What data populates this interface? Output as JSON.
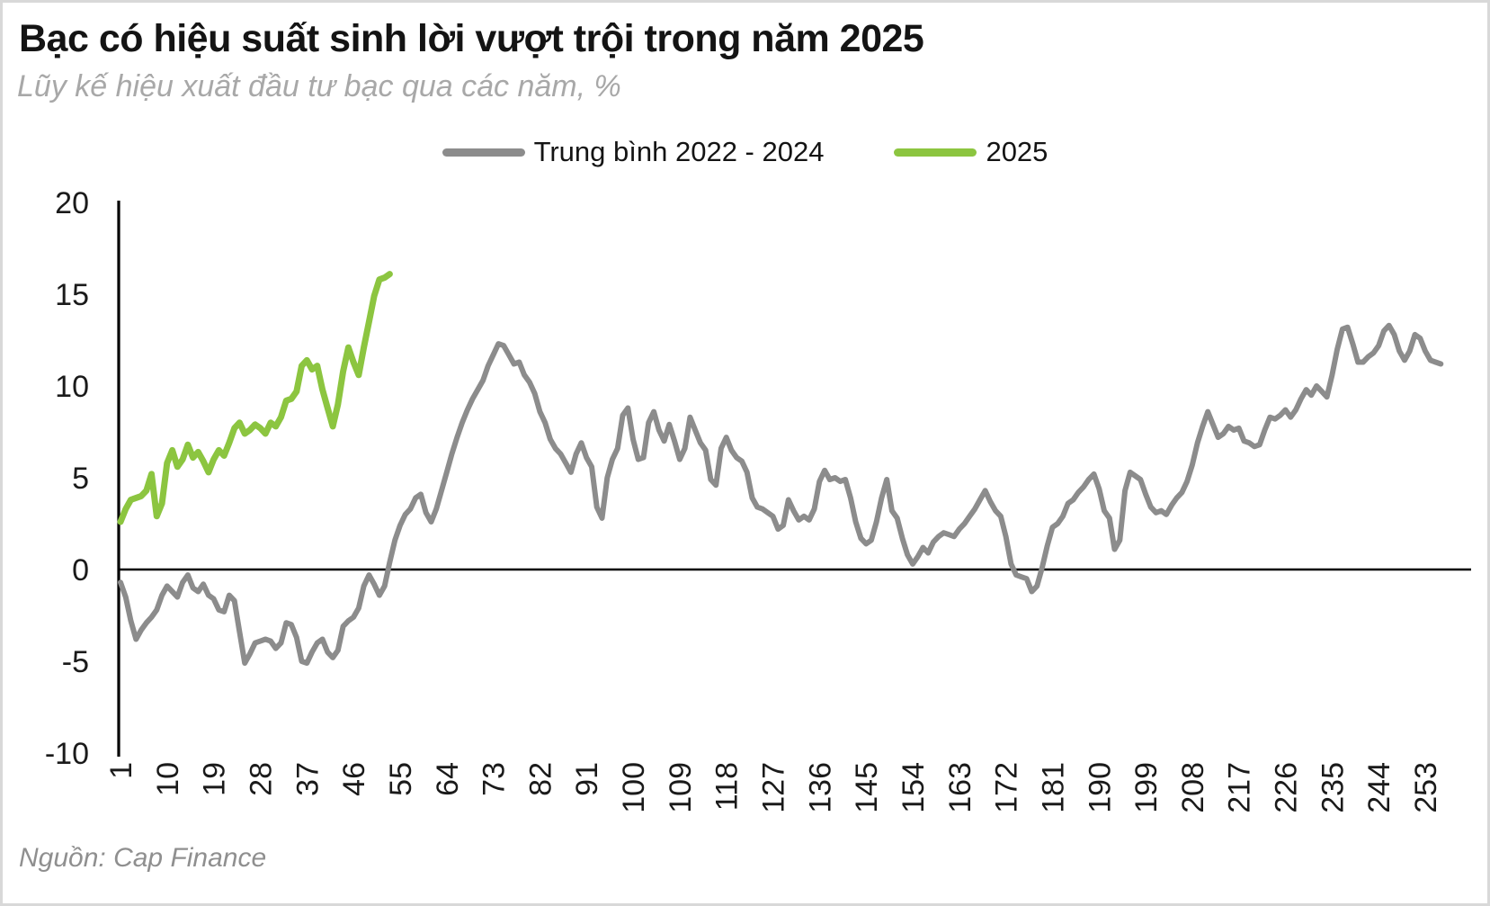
{
  "header": {
    "title": "Bạc có hiệu suất sinh lời vượt trội trong năm 2025",
    "subtitle": "Lũy kế hiệu xuất đầu tư bạc qua các năm, %"
  },
  "legend": [
    {
      "label": "Trung bình 2022 - 2024",
      "color": "#8C8C8C"
    },
    {
      "label": "2025",
      "color": "#8CC540"
    }
  ],
  "source": "Nguồn: Cap Finance",
  "colors": {
    "title_text": "#141414",
    "subtitle_text": "#a8a8a8",
    "axis_text": "#1a1a1a",
    "axis_line": "#000000",
    "series_avg": "#8C8C8C",
    "series_2025": "#8CC540",
    "page_border": "#d8d8d8"
  },
  "chart_data": {
    "type": "line",
    "title": "Bạc có hiệu suất sinh lời vượt trội trong năm 2025",
    "subtitle": "Lũy kế hiệu xuất đầu tư bạc qua các năm, %",
    "xlabel": "",
    "ylabel": "%",
    "x_unit": "trading day of year",
    "xlim": [
      1,
      256
    ],
    "ylim": [
      -10,
      20
    ],
    "grid": false,
    "legend_position": "top-center",
    "x_ticks": [
      1,
      10,
      19,
      28,
      37,
      46,
      55,
      64,
      73,
      82,
      91,
      100,
      109,
      118,
      127,
      136,
      145,
      154,
      163,
      172,
      181,
      190,
      199,
      208,
      217,
      226,
      235,
      244,
      253
    ],
    "y_ticks": [
      20,
      15,
      10,
      5,
      0,
      -5,
      -10
    ],
    "series": [
      {
        "name": "Trung bình 2022 - 2024",
        "color": "#8C8C8C",
        "start_day": 1,
        "values": [
          -0.7,
          -1.5,
          -2.8,
          -3.8,
          -3.3,
          -2.9,
          -2.6,
          -2.2,
          -1.4,
          -0.9,
          -1.2,
          -1.5,
          -0.7,
          -0.3,
          -1.0,
          -1.2,
          -0.8,
          -1.4,
          -1.6,
          -2.2,
          -2.3,
          -1.4,
          -1.7,
          -3.4,
          -5.1,
          -4.6,
          -4.0,
          -3.9,
          -3.8,
          -3.9,
          -4.3,
          -4.0,
          -2.9,
          -3.0,
          -3.7,
          -5.0,
          -5.1,
          -4.5,
          -4.0,
          -3.8,
          -4.5,
          -4.8,
          -4.4,
          -3.1,
          -2.8,
          -2.6,
          -2.1,
          -0.9,
          -0.3,
          -0.8,
          -1.4,
          -0.9,
          0.4,
          1.6,
          2.4,
          3.0,
          3.3,
          3.9,
          4.1,
          3.1,
          2.6,
          3.3,
          4.3,
          5.3,
          6.3,
          7.2,
          8.0,
          8.7,
          9.3,
          9.8,
          10.3,
          11.1,
          11.7,
          12.3,
          12.2,
          11.7,
          11.2,
          11.3,
          10.6,
          10.2,
          9.6,
          8.6,
          8.0,
          7.1,
          6.6,
          6.3,
          5.8,
          5.3,
          6.3,
          6.9,
          6.1,
          5.6,
          3.4,
          2.8,
          5.0,
          6.0,
          6.6,
          8.4,
          8.8,
          7.1,
          6.0,
          6.1,
          8.0,
          8.6,
          7.6,
          7.0,
          7.9,
          7.0,
          6.0,
          6.6,
          8.3,
          7.6,
          6.9,
          6.5,
          4.9,
          4.6,
          6.6,
          7.2,
          6.5,
          6.1,
          5.9,
          5.3,
          3.9,
          3.4,
          3.3,
          3.1,
          2.9,
          2.2,
          2.4,
          3.8,
          3.2,
          2.7,
          2.9,
          2.7,
          3.3,
          4.8,
          5.4,
          4.9,
          5.0,
          4.8,
          4.9,
          3.9,
          2.6,
          1.7,
          1.4,
          1.6,
          2.6,
          3.9,
          4.9,
          3.2,
          2.8,
          1.7,
          0.8,
          0.3,
          0.7,
          1.2,
          0.9,
          1.5,
          1.8,
          2.0,
          1.9,
          1.8,
          2.2,
          2.5,
          2.9,
          3.3,
          3.8,
          4.3,
          3.7,
          3.2,
          2.9,
          1.8,
          0.3,
          -0.3,
          -0.4,
          -0.5,
          -1.2,
          -0.9,
          0.1,
          1.3,
          2.3,
          2.5,
          2.9,
          3.6,
          3.8,
          4.2,
          4.5,
          4.9,
          5.2,
          4.4,
          3.2,
          2.8,
          1.1,
          1.6,
          4.3,
          5.3,
          5.1,
          4.9,
          4.1,
          3.4,
          3.1,
          3.2,
          3.0,
          3.5,
          3.9,
          4.2,
          4.8,
          5.7,
          6.9,
          7.8,
          8.6,
          7.9,
          7.2,
          7.4,
          7.8,
          7.6,
          7.7,
          7.0,
          6.9,
          6.7,
          6.8,
          7.6,
          8.3,
          8.2,
          8.4,
          8.7,
          8.3,
          8.7,
          9.3,
          9.8,
          9.5,
          10.0,
          9.7,
          9.4,
          10.6,
          12.0,
          13.1,
          13.2,
          12.3,
          11.3,
          11.3,
          11.6,
          11.8,
          12.2,
          13.0,
          13.3,
          12.8,
          11.9,
          11.4,
          11.9,
          12.8,
          12.6,
          11.9,
          11.4,
          11.3,
          11.2
        ]
      },
      {
        "name": "2025",
        "color": "#8CC540",
        "start_day": 1,
        "values": [
          2.6,
          3.3,
          3.8,
          3.9,
          4.0,
          4.3,
          5.2,
          2.9,
          3.6,
          5.8,
          6.5,
          5.6,
          6.0,
          6.8,
          6.1,
          6.4,
          5.9,
          5.3,
          6.0,
          6.5,
          6.2,
          6.9,
          7.7,
          8.0,
          7.4,
          7.6,
          7.9,
          7.7,
          7.4,
          8.0,
          7.8,
          8.3,
          9.2,
          9.3,
          9.7,
          11.1,
          11.4,
          10.9,
          11.1,
          9.8,
          8.8,
          7.8,
          9.0,
          10.8,
          12.1,
          11.3,
          10.6,
          12.1,
          13.5,
          14.9,
          15.8,
          15.9,
          16.1
        ]
      }
    ]
  }
}
